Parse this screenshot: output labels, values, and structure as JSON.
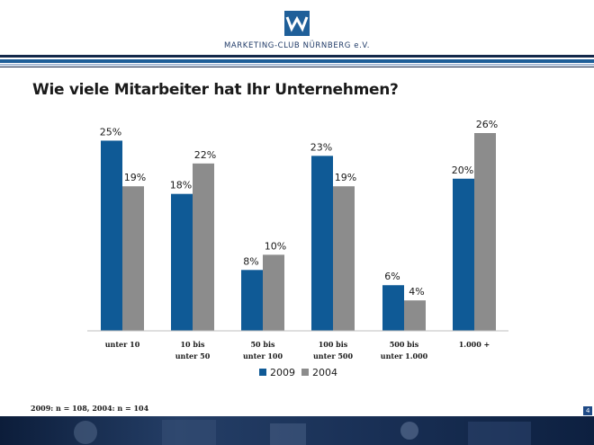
{
  "header": {
    "org_name": "MARKETING-CLUB NÜRNBERG e.V."
  },
  "slide": {
    "title": "Wie viele Mitarbeiter hat Ihr Unternehmen?",
    "footnote": "2009: n = 108, 2004: n = 104",
    "page_number": "4"
  },
  "colors": {
    "brand_blue": "#1f5f99",
    "series_2009": "#0f5a96",
    "series_2004": "#8c8c8c",
    "dark_navy": "#14284a"
  },
  "chart_data": {
    "type": "bar",
    "categories": [
      [
        "unter 10"
      ],
      [
        "10 bis",
        "unter 50"
      ],
      [
        "50 bis",
        "unter 100"
      ],
      [
        "100 bis",
        "unter 500"
      ],
      [
        "500 bis",
        "unter 1.000"
      ],
      [
        "1.000 +"
      ]
    ],
    "series": [
      {
        "name": "2009",
        "values": [
          25,
          18,
          8,
          23,
          6,
          20
        ],
        "labels": [
          "25%",
          "18%",
          "8%",
          "23%",
          "6%",
          "20%"
        ]
      },
      {
        "name": "2004",
        "values": [
          19,
          22,
          10,
          19,
          4,
          26
        ],
        "labels": [
          "19%",
          "22%",
          "10%",
          "19%",
          "4%",
          "26%"
        ]
      }
    ],
    "ylim": [
      0,
      26
    ],
    "legend_position": "bottom",
    "grid": false
  }
}
